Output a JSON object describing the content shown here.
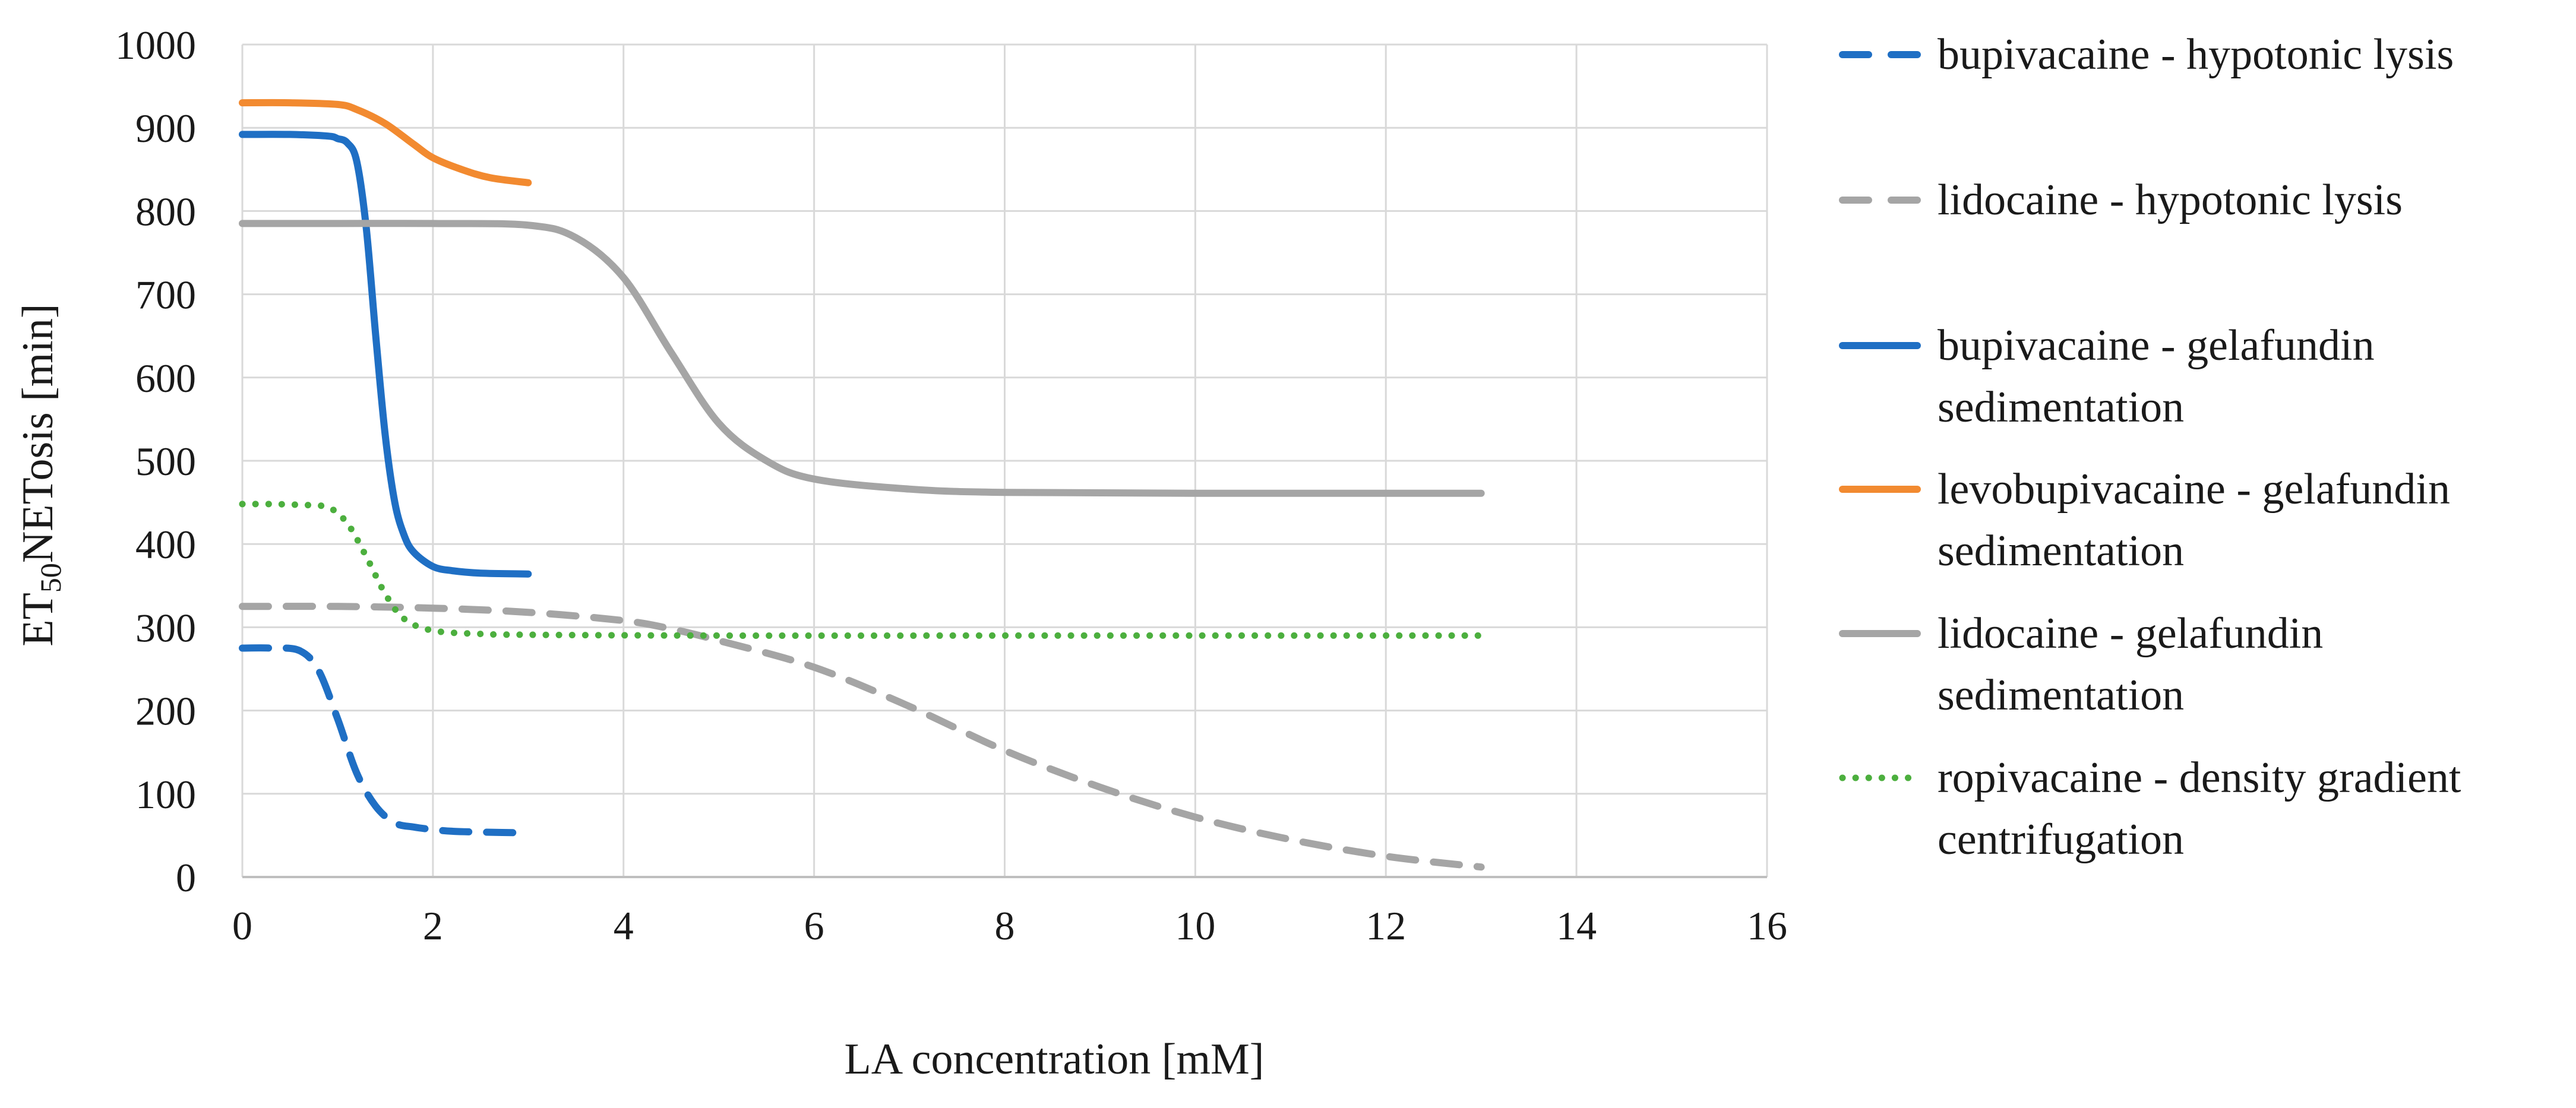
{
  "chart_data": {
    "type": "line",
    "title": "",
    "xlabel": "LA concentration [mM]",
    "ylabel": {
      "prefix": "ET",
      "subscript": "50",
      "suffix": "NETosis [min]"
    },
    "xlim": [
      0,
      16
    ],
    "ylim": [
      0,
      1000
    ],
    "xticks": [
      "0",
      "2",
      "4",
      "6",
      "8",
      "10",
      "12",
      "14",
      "16"
    ],
    "yticks": [
      "0",
      "100",
      "200",
      "300",
      "400",
      "500",
      "600",
      "700",
      "800",
      "900",
      "1000"
    ],
    "grid": true,
    "legend_position": "right",
    "series": [
      {
        "name": "bupivacaine - hypotonic lysis",
        "color": "#1F6FC4",
        "dash": "dashed",
        "x": [
          0,
          0.3,
          0.6,
          0.8,
          1.0,
          1.2,
          1.4,
          1.6,
          1.8,
          2.0,
          2.2,
          2.5,
          3.0
        ],
        "y": [
          275,
          275,
          272,
          248,
          190,
          125,
          85,
          65,
          60,
          57,
          55,
          54,
          53
        ]
      },
      {
        "name": "lidocaine - hypotonic lysis",
        "color": "#A5A5A5",
        "dash": "dashed",
        "x": [
          0,
          1,
          2,
          3,
          4,
          4.5,
          5,
          6,
          7,
          8,
          9,
          10,
          11,
          12,
          13
        ],
        "y": [
          325,
          325,
          323,
          318,
          308,
          298,
          284,
          252,
          205,
          152,
          108,
          72,
          45,
          25,
          12
        ]
      },
      {
        "name": "bupivacaine - gelafundin sedimentation",
        "color": "#1F6FC4",
        "dash": "solid",
        "x": [
          0,
          0.5,
          0.9,
          1.0,
          1.1,
          1.2,
          1.3,
          1.4,
          1.5,
          1.6,
          1.7,
          1.8,
          2.0,
          2.2,
          2.5,
          3.0
        ],
        "y": [
          892,
          892,
          890,
          887,
          882,
          860,
          780,
          650,
          530,
          450,
          410,
          390,
          373,
          368,
          365,
          364
        ]
      },
      {
        "name": "levobupivacaine - gelafundin sedimentation",
        "color": "#F28A30",
        "dash": "solid",
        "x": [
          0,
          0.5,
          1.0,
          1.2,
          1.5,
          1.8,
          2.0,
          2.3,
          2.6,
          3.0
        ],
        "y": [
          930,
          930,
          928,
          922,
          905,
          880,
          864,
          850,
          840,
          834
        ]
      },
      {
        "name": "lidocaine - gelafundin sedimentation",
        "color": "#A5A5A5",
        "dash": "solid",
        "x": [
          0,
          1,
          2,
          3,
          3.5,
          4,
          4.5,
          5,
          5.5,
          6,
          7,
          8,
          10,
          13
        ],
        "y": [
          785,
          785,
          785,
          783,
          768,
          720,
          630,
          545,
          500,
          478,
          466,
          462,
          461,
          461
        ]
      },
      {
        "name": "ropivacaine - density gradient centrifugation",
        "color": "#4CAF3E",
        "dash": "dotted",
        "x": [
          0,
          0.3,
          0.6,
          0.9,
          1.1,
          1.3,
          1.5,
          1.7,
          2.0,
          2.5,
          3,
          5,
          8,
          13
        ],
        "y": [
          448,
          448,
          447,
          444,
          425,
          385,
          340,
          310,
          296,
          292,
          291,
          290,
          290,
          290
        ]
      }
    ]
  }
}
